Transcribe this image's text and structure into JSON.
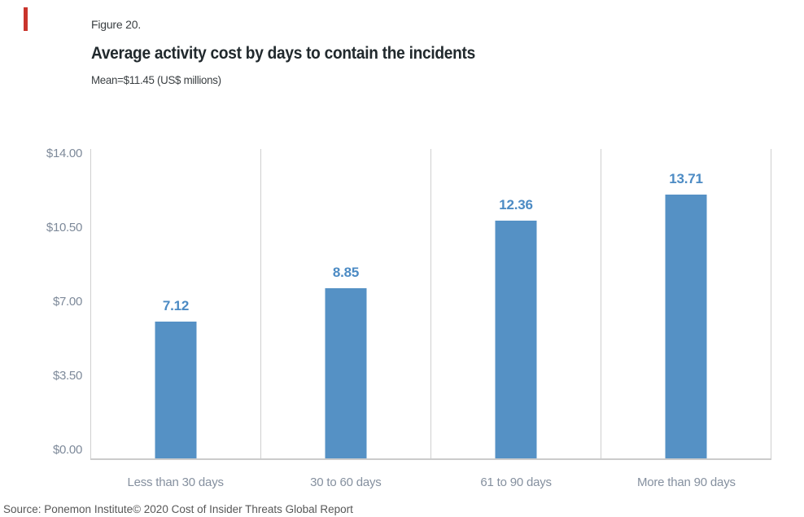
{
  "accent": {
    "color": "#c9342c"
  },
  "header": {
    "figure_label": "Figure 20.",
    "title": "Average activity cost by days to contain the incidents",
    "subtitle": "Mean=$11.45 (US$ millions)"
  },
  "chart_data": {
    "type": "bar",
    "title": "Average activity cost by days to contain the incidents",
    "subtitle": "Mean=$11.45 (US$ millions)",
    "units": "US$ millions",
    "categories": [
      "Less than 30 days",
      "30 to 60 days",
      "61 to 90 days",
      "More than 90 days"
    ],
    "values": [
      7.12,
      8.85,
      12.36,
      13.71
    ],
    "value_labels": [
      "7.12",
      "8.85",
      "12.36",
      "13.71"
    ],
    "y_ticks": [
      "$14.00",
      "$10.50",
      "$7.00",
      "$3.50",
      "$0.00"
    ],
    "ylim": [
      0,
      14
    ],
    "xlabel": "",
    "ylabel": "",
    "legend": "none",
    "grid": "vertical category dividers only, no horizontal gridlines",
    "bar_color": "#5591c5",
    "value_label_color": "#4c8bc4",
    "tick_label_color": "#7e8a9a",
    "axis_line_color": "#cbcbcb"
  },
  "footer": {
    "source": "Source: Ponemon Institute© 2020 Cost of Insider Threats Global Report"
  }
}
